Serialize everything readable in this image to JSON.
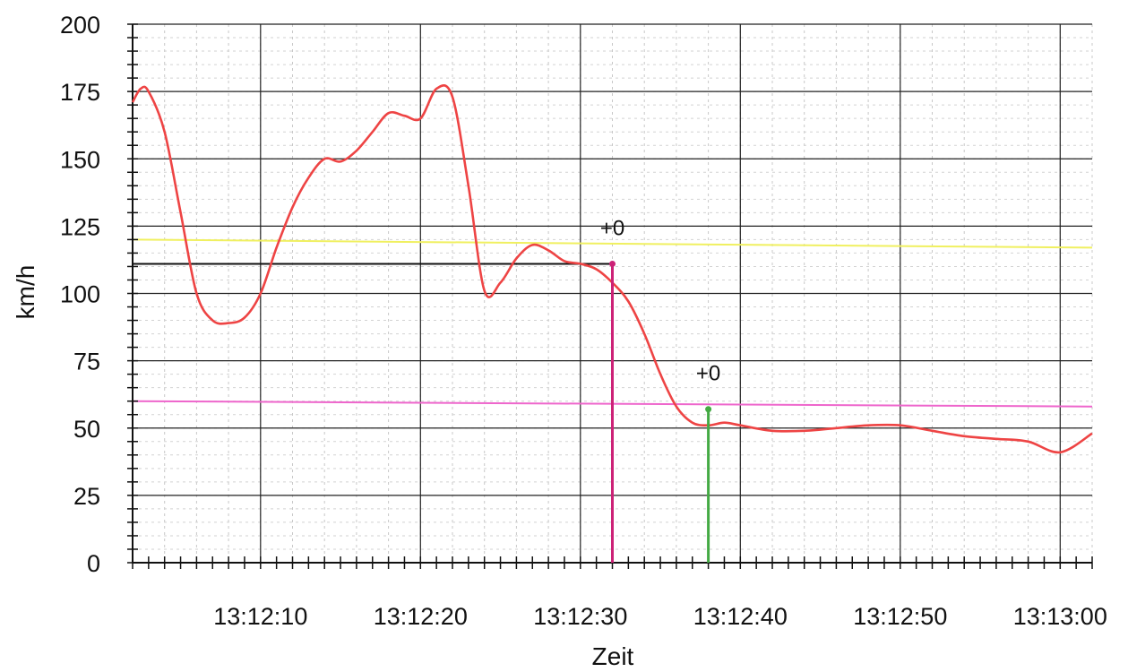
{
  "chart_data": {
    "type": "line",
    "xlabel": "Zeit",
    "ylabel": "km/h",
    "ylim": [
      0,
      200
    ],
    "xlim": [
      "13:12:02",
      "13:13:02"
    ],
    "y_ticks": [
      "0",
      "25",
      "50",
      "75",
      "100",
      "125",
      "150",
      "175",
      "200"
    ],
    "x_ticks": [
      "13:12:10",
      "13:12:20",
      "13:12:30",
      "13:12:40",
      "13:12:50",
      "13:13:00"
    ],
    "grid": true,
    "series": [
      {
        "color": "#ee4444",
        "x": [
          "13:12:02",
          "13:12:02.5",
          "13:12:03",
          "13:12:04",
          "13:12:05",
          "13:12:06",
          "13:12:07",
          "13:12:08",
          "13:12:09",
          "13:12:10",
          "13:12:11",
          "13:12:12",
          "13:12:13",
          "13:12:14",
          "13:12:15",
          "13:12:16",
          "13:12:17",
          "13:12:18",
          "13:12:19",
          "13:12:20",
          "13:12:21",
          "13:12:22",
          "13:12:23",
          "13:12:24",
          "13:12:25",
          "13:12:26",
          "13:12:27",
          "13:12:28",
          "13:12:29",
          "13:12:30",
          "13:12:31",
          "13:12:32",
          "13:12:33",
          "13:12:34",
          "13:12:35",
          "13:12:36",
          "13:12:37",
          "13:12:38",
          "13:12:39",
          "13:12:40",
          "13:12:42",
          "13:12:44",
          "13:12:46",
          "13:12:48",
          "13:12:50",
          "13:12:52",
          "13:12:54",
          "13:12:56",
          "13:12:58",
          "13:13:00",
          "13:13:02"
        ],
        "y": [
          171,
          176,
          175,
          160,
          130,
          100,
          90,
          89,
          91,
          100,
          117,
          132,
          143,
          150,
          149,
          153,
          160,
          167,
          166,
          165,
          176,
          173,
          140,
          101,
          104,
          113,
          118,
          116,
          112,
          111,
          109,
          104,
          97,
          85,
          70,
          58,
          52,
          51,
          52,
          51,
          49,
          49,
          50,
          51,
          51,
          49,
          47,
          46,
          45,
          41,
          48
        ]
      }
    ],
    "reference_lines": [
      {
        "color": "#f0f060",
        "y_start": 120,
        "y_end": 117
      },
      {
        "color": "#ee66cc",
        "y_start": 60,
        "y_end": 58
      },
      {
        "color": "#111111",
        "y": 111,
        "x_from": "13:12:02",
        "x_to": "13:12:32"
      }
    ],
    "markers": [
      {
        "x": "13:12:32",
        "y": 111,
        "color": "#cc2277",
        "label": "+0"
      },
      {
        "x": "13:12:38",
        "y": 57,
        "color": "#44aa44",
        "label": "+0"
      }
    ]
  }
}
